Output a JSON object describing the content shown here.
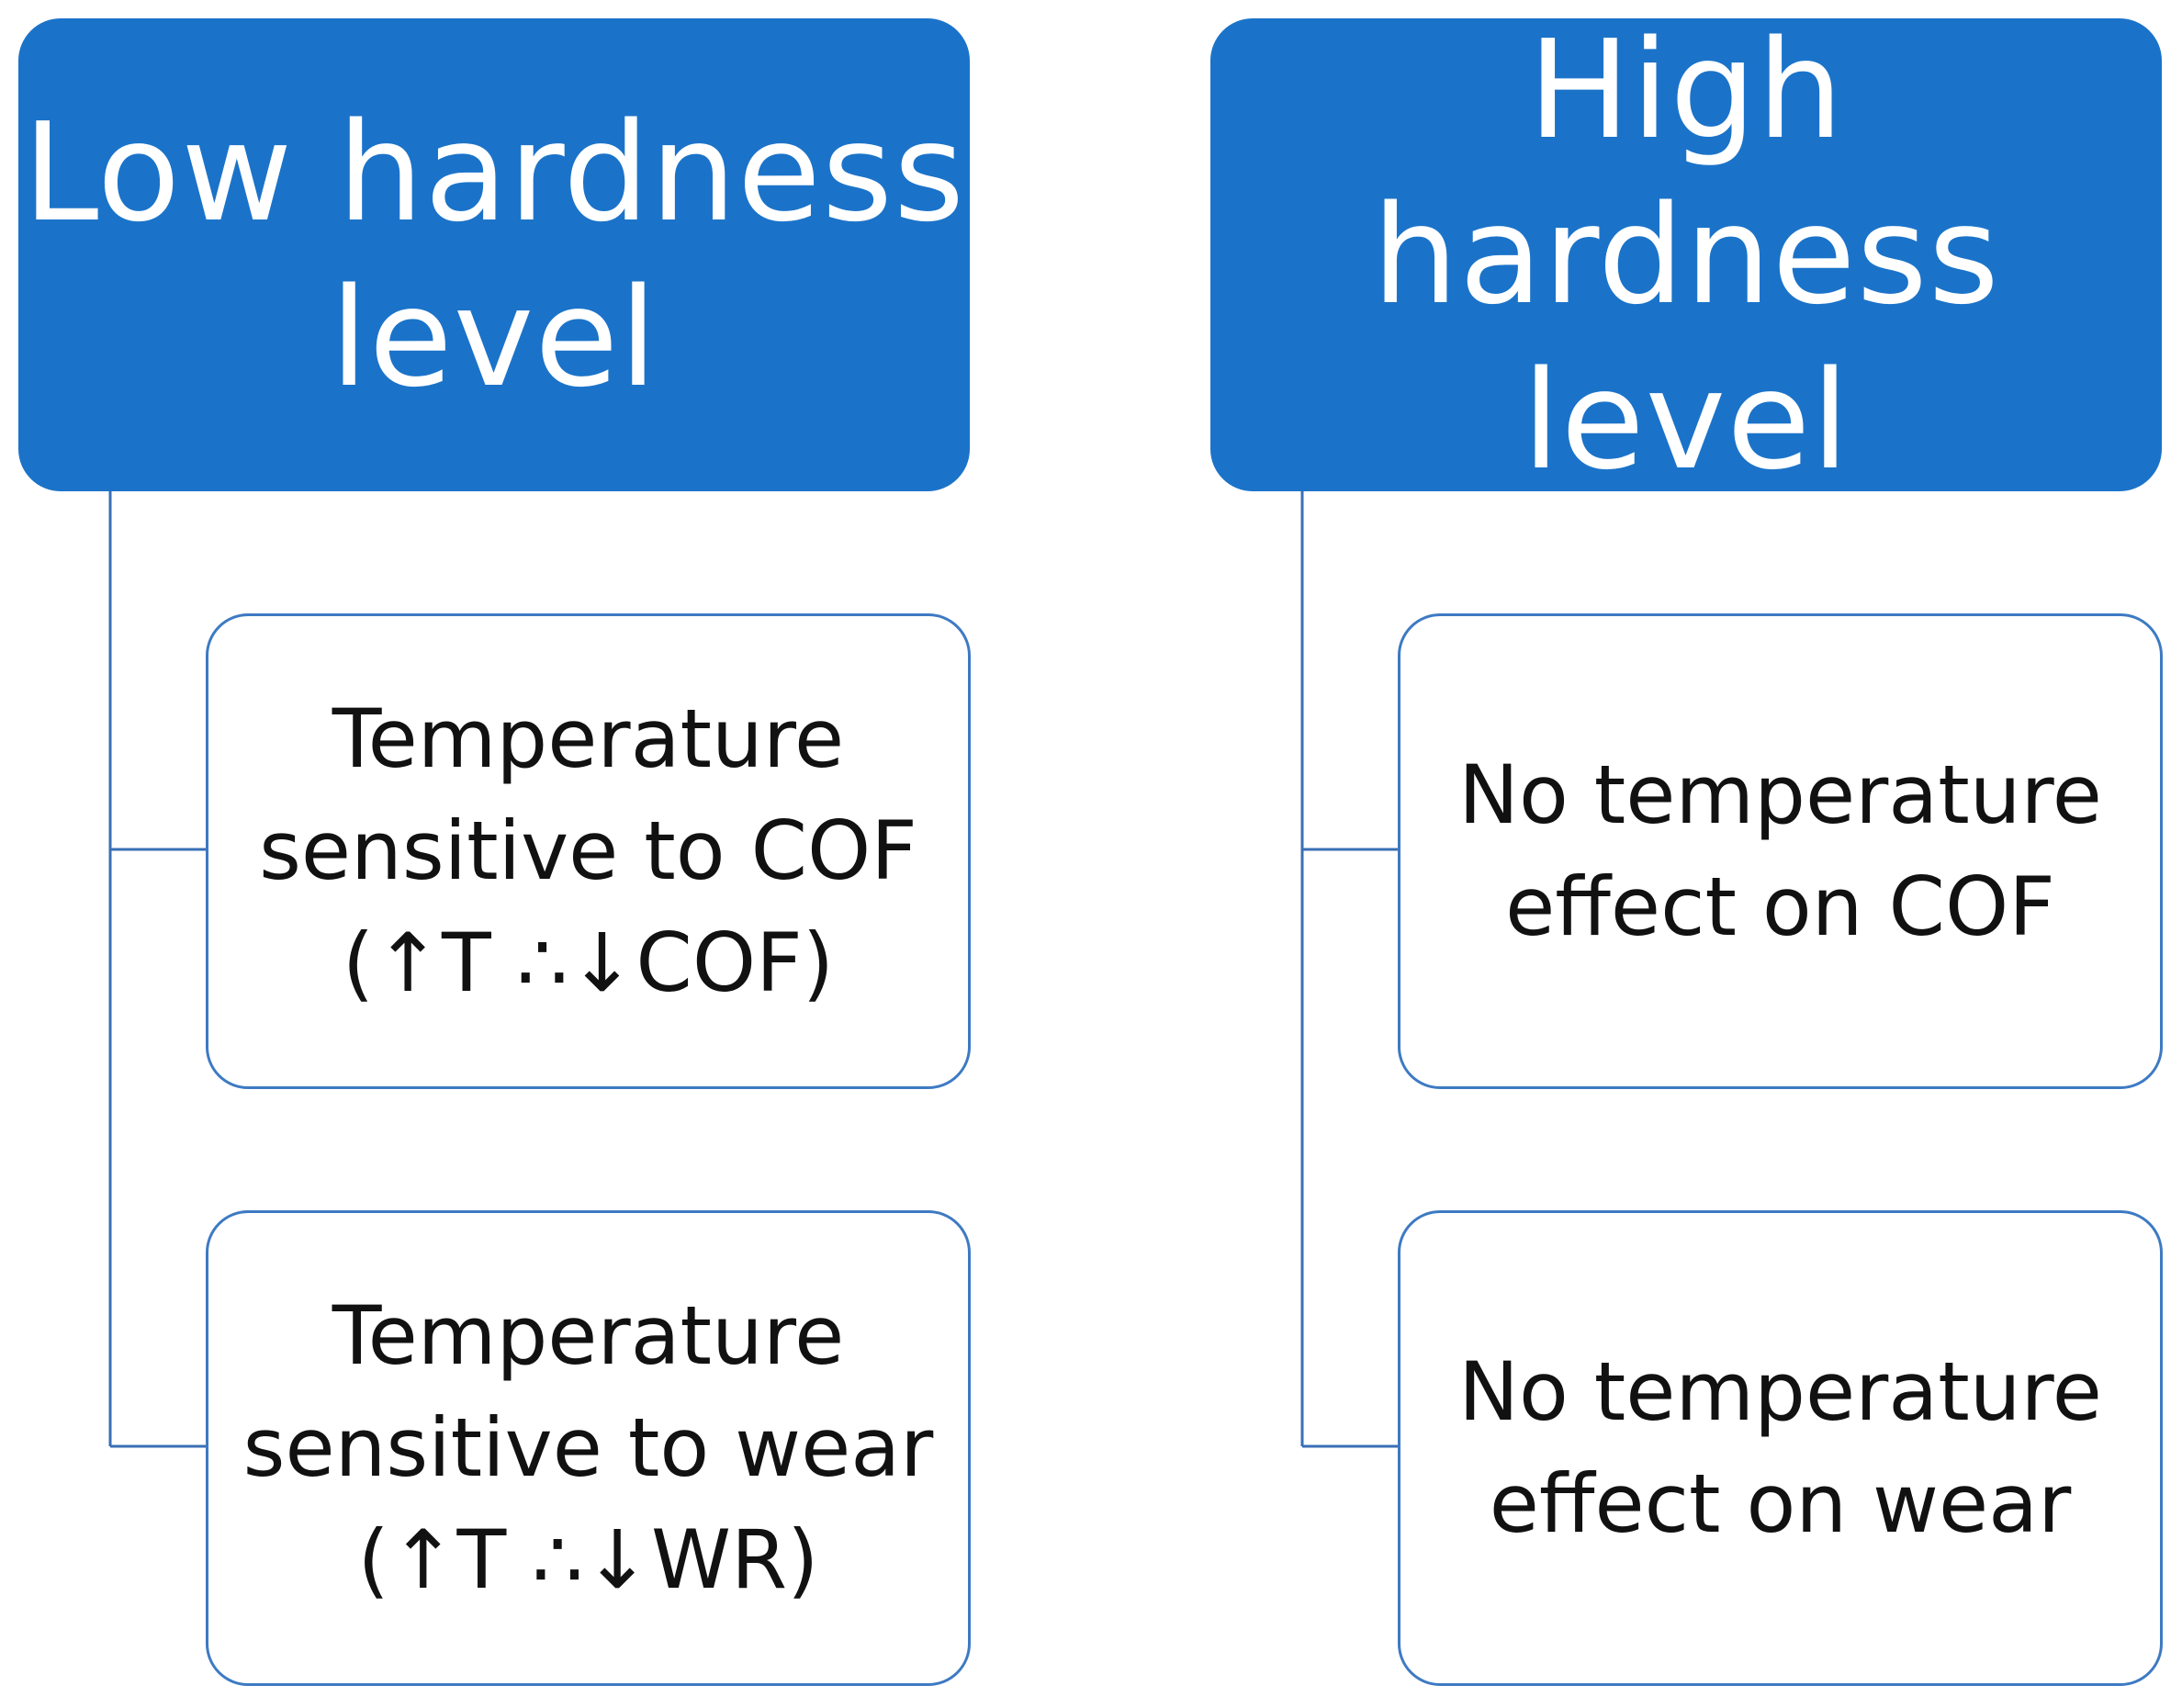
{
  "colors": {
    "header_fill": "#1b73c9",
    "child_border": "#3d7ac3",
    "connector": "#3a6fb5"
  },
  "columns": [
    {
      "header": "Low hardness\nlevel",
      "children": [
        "Temperature\nsensitive to COF\n(↑T ∴↓COF)",
        "Temperature\nsensitive to wear\n(↑T ∴↓WR)"
      ]
    },
    {
      "header": "High hardness\nlevel",
      "children": [
        "No temperature\neffect on COF",
        "No temperature\neffect on wear"
      ]
    }
  ]
}
